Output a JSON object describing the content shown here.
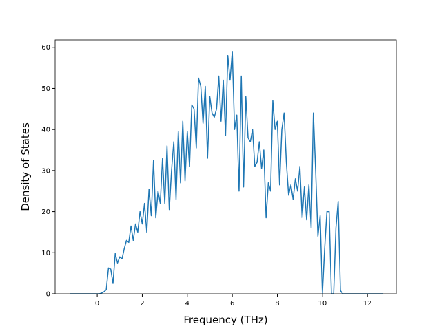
{
  "chart_data": {
    "type": "line",
    "xlabel": "Frequency (THz)",
    "ylabel": "Density of States",
    "x": [
      -1.2,
      -1.1,
      -1,
      -0.9,
      -0.8,
      -0.7,
      -0.6,
      -0.5,
      -0.4,
      -0.3,
      -0.2,
      -0.1,
      0,
      0.1,
      0.2,
      0.3,
      0.4,
      0.5,
      0.6,
      0.7,
      0.8,
      0.9,
      1,
      1.1,
      1.2,
      1.3,
      1.4,
      1.5,
      1.6,
      1.7,
      1.8,
      1.9,
      2,
      2.1,
      2.2,
      2.3,
      2.4,
      2.5,
      2.6,
      2.7,
      2.8,
      2.9,
      3,
      3.1,
      3.2,
      3.3,
      3.4,
      3.5,
      3.6,
      3.7,
      3.8,
      3.9,
      4,
      4.1,
      4.2,
      4.3,
      4.4,
      4.5,
      4.6,
      4.7,
      4.8,
      4.9,
      5,
      5.1,
      5.2,
      5.3,
      5.4,
      5.5,
      5.6,
      5.7,
      5.8,
      5.9,
      6,
      6.1,
      6.2,
      6.3,
      6.4,
      6.5,
      6.6,
      6.7,
      6.8,
      6.9,
      7,
      7.1,
      7.2,
      7.3,
      7.4,
      7.5,
      7.6,
      7.7,
      7.8,
      7.9,
      8,
      8.1,
      8.2,
      8.3,
      8.4,
      8.5,
      8.6,
      8.7,
      8.8,
      8.9,
      9,
      9.1,
      9.2,
      9.3,
      9.4,
      9.5,
      9.6,
      9.7,
      9.8,
      9.9,
      10,
      10.1,
      10.2,
      10.3,
      10.4,
      10.5,
      10.6,
      10.7,
      10.8,
      10.9,
      11,
      11.1,
      11.2,
      11.3,
      11.4,
      11.5,
      11.6,
      11.7,
      11.8,
      11.9,
      12,
      12.1,
      12.2,
      12.3,
      12.4,
      12.5,
      12.6,
      12.7
    ],
    "values": [
      0,
      0,
      0,
      0,
      0,
      0,
      0,
      0,
      0,
      0,
      0,
      0,
      0,
      0,
      0.2,
      0.5,
      1,
      6.3,
      6,
      2.5,
      9.8,
      7.5,
      9,
      8.5,
      11,
      13,
      12.5,
      16.5,
      13,
      17,
      15,
      20,
      17,
      22,
      15,
      25.5,
      19,
      32.5,
      18.5,
      25,
      22,
      33,
      22,
      36,
      20.5,
      30,
      37,
      23,
      39.5,
      27,
      42,
      27.5,
      39.5,
      31,
      46,
      45,
      35.5,
      52.5,
      50.5,
      41.5,
      50.5,
      33,
      48,
      44,
      43,
      45,
      53,
      42,
      52,
      38.5,
      58,
      52,
      59,
      40,
      43.5,
      25,
      53,
      26,
      48,
      38,
      37,
      40,
      31,
      32,
      37,
      30.5,
      35,
      18.5,
      27,
      25,
      47,
      40,
      42,
      26.5,
      40,
      44,
      32,
      24,
      26.5,
      23,
      28,
      25,
      31,
      18.5,
      26,
      18,
      26.5,
      16,
      44,
      30,
      14,
      19,
      0,
      11,
      20,
      20,
      0,
      0,
      16,
      22.5,
      0.8,
      0,
      0,
      0,
      0,
      0,
      0,
      0,
      0,
      0,
      0,
      0,
      0,
      0,
      0,
      0,
      0,
      0,
      0,
      0
    ],
    "color": "#1f77b4",
    "xlim": [
      -1.87,
      13.28
    ],
    "ylim": [
      0,
      61.8
    ],
    "xticks": [
      0,
      2,
      4,
      6,
      8,
      10,
      12
    ],
    "yticks": [
      0,
      10,
      20,
      30,
      40,
      50,
      60
    ]
  }
}
